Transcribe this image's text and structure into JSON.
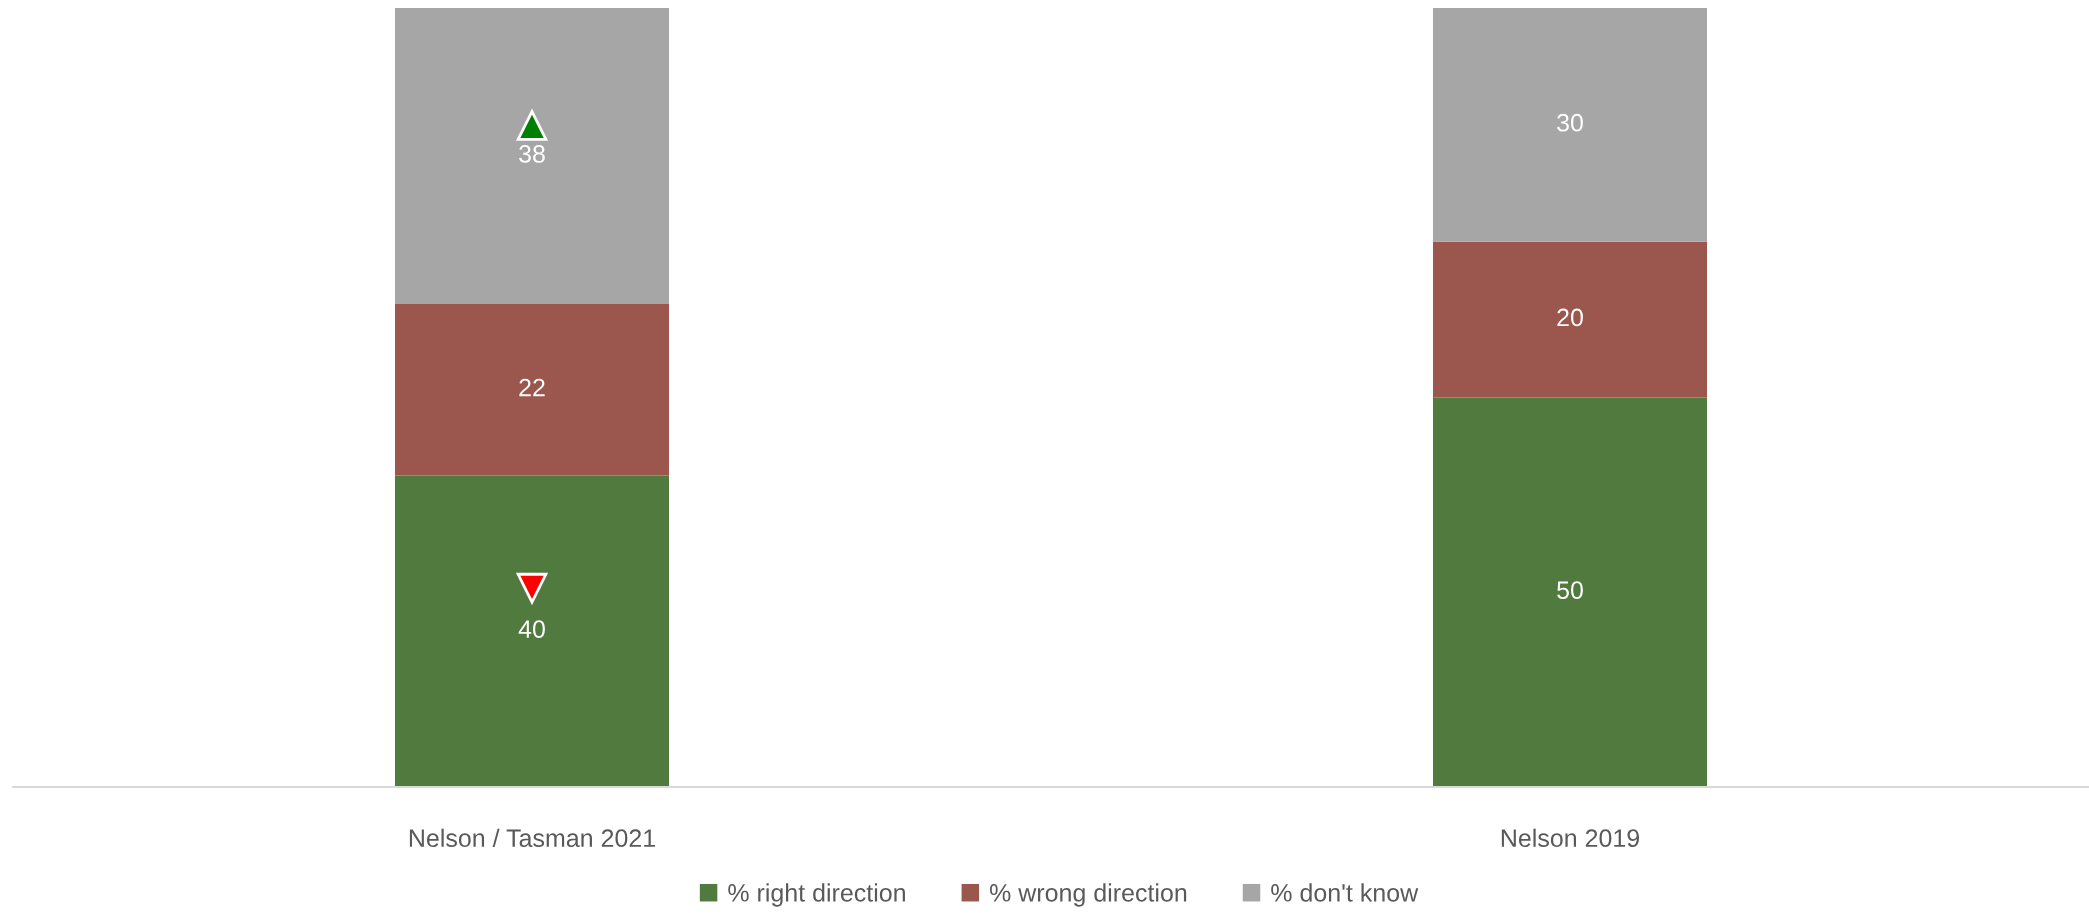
{
  "chart_data": {
    "type": "bar",
    "stacked": true,
    "categories": [
      "Nelson / Tasman 2021",
      "Nelson 2019"
    ],
    "series": [
      {
        "name": "% right direction",
        "color": "#507a3e",
        "values": [
          40,
          50
        ]
      },
      {
        "name": "% wrong direction",
        "color": "#9b574d",
        "values": [
          22,
          20
        ]
      },
      {
        "name": "% don't know",
        "color": "#a6a6a6",
        "values": [
          38,
          30
        ]
      }
    ],
    "ylim": [
      0,
      100
    ],
    "tick_labels": "x",
    "data_labels": true,
    "legend": "bottom"
  }
}
